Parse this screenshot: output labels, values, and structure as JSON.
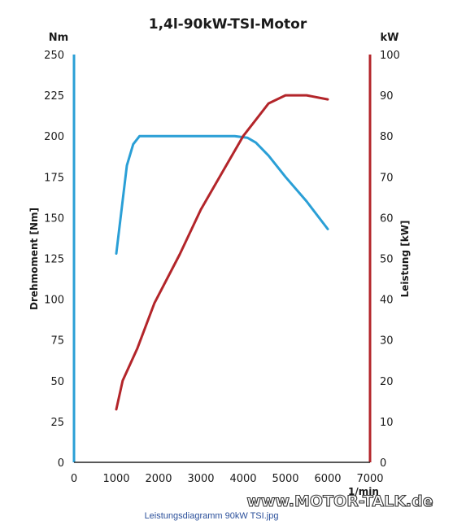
{
  "chart_data": {
    "type": "line",
    "title": "1,4l-90kW-TSI-Motor",
    "x_unit": "1/min",
    "xlim": [
      0,
      7000
    ],
    "x_ticks": [
      0,
      1000,
      2000,
      3000,
      4000,
      5000,
      6000,
      7000
    ],
    "y_left": {
      "label": "Drehmoment [Nm]",
      "unit": "Nm",
      "lim": [
        0,
        250
      ],
      "ticks": [
        0,
        25,
        50,
        75,
        100,
        125,
        150,
        175,
        200,
        225,
        250
      ],
      "color": "#2a9fd6"
    },
    "y_right": {
      "label": "Leistung [kW]",
      "unit": "kW",
      "lim": [
        0,
        100
      ],
      "ticks": [
        0,
        10,
        20,
        30,
        40,
        50,
        60,
        70,
        80,
        90,
        100
      ],
      "color": "#b3252a"
    },
    "series": [
      {
        "axis": "left",
        "color": "#2a9fd6",
        "points": [
          [
            1000,
            128
          ],
          [
            1250,
            182
          ],
          [
            1400,
            195
          ],
          [
            1550,
            200
          ],
          [
            2000,
            200
          ],
          [
            3000,
            200
          ],
          [
            3800,
            200
          ],
          [
            4100,
            199
          ],
          [
            4300,
            196
          ],
          [
            4600,
            188
          ],
          [
            5000,
            175
          ],
          [
            5500,
            160
          ],
          [
            6000,
            143
          ]
        ]
      },
      {
        "axis": "right",
        "color": "#b3252a",
        "points": [
          [
            1000,
            13
          ],
          [
            1150,
            20
          ],
          [
            1500,
            28
          ],
          [
            1900,
            39
          ],
          [
            2500,
            51
          ],
          [
            3000,
            62
          ],
          [
            3500,
            71
          ],
          [
            4000,
            80
          ],
          [
            4300,
            84
          ],
          [
            4600,
            88
          ],
          [
            5000,
            90
          ],
          [
            5500,
            90
          ],
          [
            6000,
            89
          ]
        ]
      }
    ],
    "grid": false,
    "legend": "none"
  },
  "watermark": "www.MOTOR-TALK.de",
  "caption": "Leistungsdiagramm 90kW TSI.jpg"
}
